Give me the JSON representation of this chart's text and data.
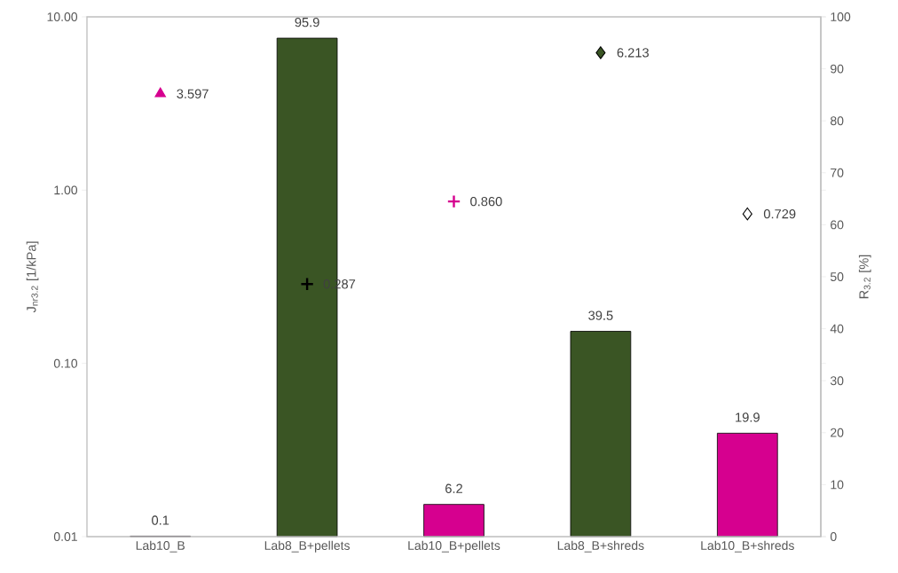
{
  "chart_data": {
    "type": "bar",
    "ylabel": "J$_{nr3.2}$ [1/kPa]",
    "y2label": "R$_{3.2}$ [%]",
    "categories": [
      "Lab10_B",
      "Lab8_B+pellets",
      "Lab10_B+pellets",
      "Lab8_B+shreds",
      "Lab10_B+shreds"
    ],
    "log": "y",
    "ylim": [
      0.01,
      10
    ],
    "yticks": [
      {
        "value": 0.01,
        "label": "0.01"
      },
      {
        "value": 0.1,
        "label": "0.10"
      },
      {
        "value": 1,
        "label": "1.00"
      },
      {
        "value": 10,
        "label": "10.00"
      }
    ],
    "y2lim": [
      0,
      100
    ],
    "y2ticks": [
      0,
      10,
      20,
      30,
      40,
      50,
      60,
      70,
      80,
      90,
      100
    ],
    "series": [
      {
        "axis": "y2",
        "colors": [
          "#d6008f",
          "#3a5524",
          "#d6008f",
          "#3a5524",
          "#d6008f"
        ],
        "values": [
          0.1,
          95.9,
          6.2,
          39.5,
          19.9
        ],
        "value_labels": [
          "0.1",
          "95.9",
          "6.2",
          "39.5",
          "19.9"
        ]
      },
      {
        "type": "scatter",
        "marker": "triangle",
        "color": "#d6008f",
        "values": [
          3.597,
          null,
          null,
          null,
          null
        ],
        "value_labels": [
          "3.597",
          null,
          null,
          null,
          null
        ]
      },
      {
        "type": "scatter",
        "marker": "cross",
        "color": "#000000",
        "values": [
          null,
          0.287,
          null,
          null,
          null
        ],
        "value_labels": [
          null,
          "0.287",
          null,
          null,
          null
        ]
      },
      {
        "type": "scatter",
        "marker": "cross",
        "color": "#d6008f",
        "values": [
          null,
          null,
          0.86,
          null,
          null
        ],
        "value_labels": [
          null,
          null,
          "0.860",
          null,
          null
        ]
      },
      {
        "type": "scatter",
        "marker": "diamond",
        "color": "#3a5524",
        "values": [
          null,
          null,
          null,
          6.213,
          null
        ],
        "value_labels": [
          null,
          null,
          null,
          "6.213",
          null
        ]
      },
      {
        "type": "scatter",
        "marker": "diamond",
        "color": "#ffffff",
        "values": [
          null,
          null,
          null,
          null,
          0.729
        ],
        "value_labels": [
          null,
          null,
          null,
          null,
          "0.729"
        ]
      }
    ]
  }
}
